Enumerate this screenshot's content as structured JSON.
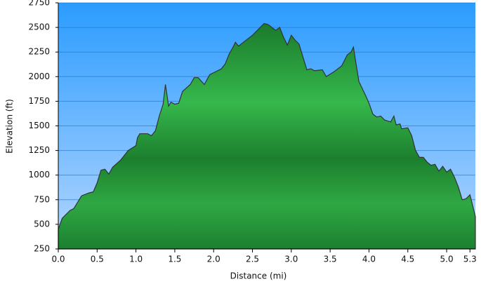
{
  "chart_data": {
    "type": "area",
    "xlabel": "Distance (mi)",
    "ylabel": "Elevation (ft)",
    "x": [
      0,
      0.05,
      0.15,
      0.2,
      0.3,
      0.4,
      0.45,
      0.5,
      0.55,
      0.6,
      0.65,
      0.7,
      0.8,
      0.9,
      1.0,
      1.02,
      1.05,
      1.15,
      1.2,
      1.25,
      1.3,
      1.35,
      1.38,
      1.42,
      1.45,
      1.5,
      1.55,
      1.6,
      1.7,
      1.75,
      1.8,
      1.88,
      1.95,
      2.05,
      2.1,
      2.15,
      2.2,
      2.25,
      2.28,
      2.32,
      2.4,
      2.5,
      2.55,
      2.6,
      2.65,
      2.7,
      2.75,
      2.8,
      2.85,
      2.9,
      2.95,
      3.0,
      3.05,
      3.1,
      3.15,
      3.2,
      3.25,
      3.3,
      3.4,
      3.45,
      3.55,
      3.65,
      3.72,
      3.77,
      3.8,
      3.82,
      3.87,
      3.95,
      4.0,
      4.05,
      4.1,
      4.15,
      4.2,
      4.28,
      4.32,
      4.35,
      4.4,
      4.42,
      4.5,
      4.55,
      4.6,
      4.65,
      4.7,
      4.75,
      4.8,
      4.85,
      4.9,
      4.95,
      5.0,
      5.05,
      5.1,
      5.15,
      5.2,
      5.25,
      5.3,
      5.37
    ],
    "values": [
      450,
      560,
      640,
      660,
      790,
      820,
      830,
      920,
      1050,
      1060,
      1010,
      1080,
      1150,
      1250,
      1300,
      1380,
      1420,
      1420,
      1400,
      1450,
      1600,
      1720,
      1920,
      1700,
      1740,
      1720,
      1730,
      1850,
      1920,
      1990,
      1990,
      1920,
      2020,
      2060,
      2080,
      2130,
      2230,
      2300,
      2350,
      2310,
      2360,
      2420,
      2460,
      2500,
      2540,
      2530,
      2500,
      2470,
      2500,
      2400,
      2320,
      2420,
      2370,
      2330,
      2200,
      2070,
      2080,
      2060,
      2070,
      2000,
      2050,
      2110,
      2220,
      2250,
      2300,
      2200,
      1950,
      1820,
      1730,
      1620,
      1590,
      1600,
      1560,
      1540,
      1600,
      1510,
      1520,
      1470,
      1480,
      1400,
      1250,
      1180,
      1180,
      1130,
      1100,
      1110,
      1040,
      1090,
      1030,
      1060,
      980,
      880,
      750,
      760,
      800,
      580
    ],
    "xlim": [
      0,
      5.37
    ],
    "ylim": [
      250,
      2750
    ],
    "xticks": [
      {
        "value": 0,
        "label": "0.0"
      },
      0.5,
      {
        "value": 1,
        "label": "1.0"
      },
      1.5,
      {
        "value": 2,
        "label": "2.0"
      },
      2.5,
      {
        "value": 3,
        "label": "3.0"
      },
      3.5,
      {
        "value": 4,
        "label": "4.0"
      },
      4.5,
      {
        "value": 5,
        "label": "5.0"
      },
      5.3
    ],
    "yticks": [
      250,
      500,
      750,
      1000,
      1250,
      1500,
      1750,
      2000,
      2250,
      2500,
      2750
    ],
    "grid": true,
    "color": "#22a03a"
  }
}
